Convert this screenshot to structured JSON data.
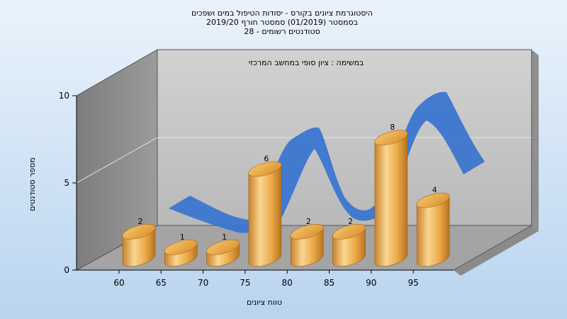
{
  "chart_data": {
    "type": "bar",
    "title_lines": [
      "היסטוגרמת ציונים בקורס - יסודות הטיפול במים ושפכים",
      "בסמסטר  (01/2019)  סמסטר חורף 2019/20",
      "סטודנטים רשומים - 28"
    ],
    "subtitle": "במשימה : ציון סופי במחשב המרכזי",
    "xlabel": "טווח ציונים",
    "ylabel": "מספר סטודנטים",
    "categories": [
      "60",
      "65",
      "70",
      "75",
      "80",
      "85",
      "90",
      "95"
    ],
    "values": [
      2,
      1,
      1,
      6,
      2,
      2,
      8,
      4
    ],
    "value_labels": [
      "2",
      "1",
      "1",
      "6",
      "2",
      "2",
      "8",
      "4"
    ],
    "yticks": [
      "0",
      "5",
      "10"
    ],
    "ylim": [
      0,
      10
    ],
    "grid": true,
    "legend": "none",
    "bar_color": "#f0b24a",
    "curve_color": "#3a76d0"
  }
}
